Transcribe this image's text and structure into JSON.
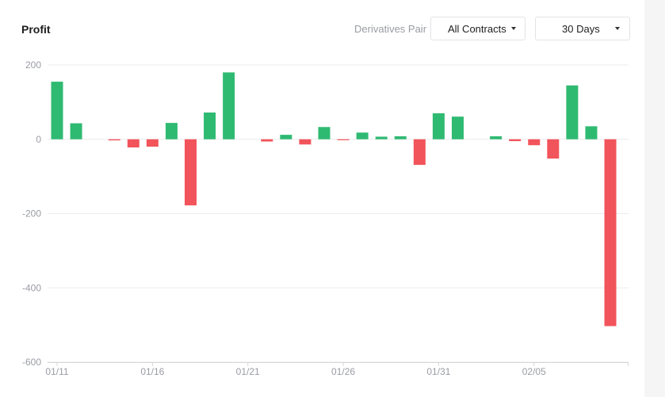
{
  "header": {
    "title": "Profit",
    "filter_label": "Derivatives Pair",
    "contracts_value": "All Contracts",
    "range_value": "30 Days"
  },
  "colors": {
    "positive": "#2fba72",
    "negative": "#f2545b",
    "grid": "#ececee",
    "axis": "#d4d5d8",
    "tick_text": "#9a9ca3"
  },
  "icons": {
    "dropdown": "caret-down-icon"
  },
  "chart_data": {
    "type": "bar",
    "title": "Profit",
    "xlabel": "",
    "ylabel": "",
    "ylim": [
      -600,
      200
    ],
    "yticks": [
      200,
      0,
      -200,
      -400,
      -600
    ],
    "grid": true,
    "legend": "none",
    "xtick_labels": [
      "01/11",
      "01/16",
      "01/21",
      "01/26",
      "01/31",
      "02/05"
    ],
    "categories": [
      "01/11",
      "01/12",
      "01/13",
      "01/14",
      "01/15",
      "01/16",
      "01/17",
      "01/18",
      "01/19",
      "01/20",
      "01/21",
      "01/22",
      "01/23",
      "01/24",
      "01/25",
      "01/26",
      "01/27",
      "01/28",
      "01/29",
      "01/30",
      "01/31",
      "02/01",
      "02/02",
      "02/03",
      "02/04",
      "02/05",
      "02/06",
      "02/07",
      "02/08",
      "02/09"
    ],
    "values": [
      155,
      43,
      0,
      -3,
      -22,
      -20,
      44,
      -178,
      72,
      180,
      0,
      -6,
      12,
      -14,
      33,
      -2,
      18,
      7,
      8,
      -69,
      70,
      61,
      0,
      8,
      -5,
      -16,
      -52,
      145,
      35,
      -503
    ]
  }
}
